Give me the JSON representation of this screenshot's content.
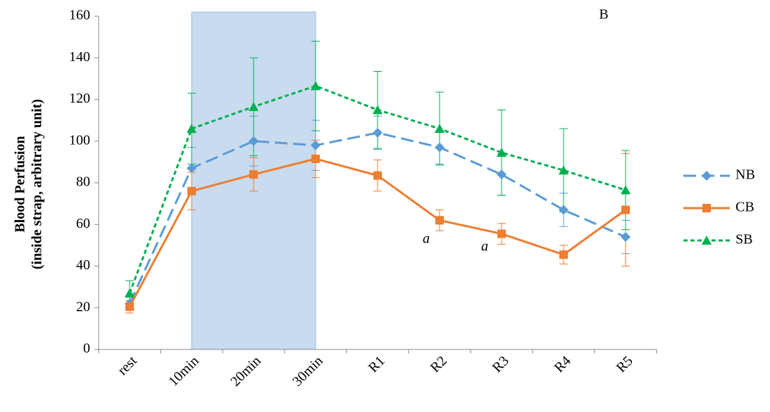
{
  "chart_data": {
    "type": "line",
    "panel_label": "B",
    "y_label": [
      "Blood Perfusion",
      "(inside strap, arbitrary unit)"
    ],
    "categories": [
      "rest",
      "10min",
      "20min",
      "30min",
      "R1",
      "R2",
      "R3",
      "R4",
      "R5"
    ],
    "shaded_span": [
      "10min",
      "30min"
    ],
    "series": [
      {
        "name": "NB",
        "color": "#5b9bd5",
        "marker": "diamond",
        "dash": "long",
        "values": [
          22,
          87,
          100,
          98,
          104,
          97,
          84,
          67,
          54
        ],
        "errors": [
          3,
          10,
          12,
          12,
          8,
          8,
          10,
          8,
          8
        ]
      },
      {
        "name": "CB",
        "color": "#ed7d31",
        "marker": "square",
        "dash": "solid",
        "values": [
          20.5,
          76,
          84,
          91.5,
          83.5,
          62,
          55.5,
          45.5,
          67
        ],
        "errors": [
          3,
          9,
          8,
          9,
          7.5,
          5,
          5,
          4.5,
          27
        ]
      },
      {
        "name": "SB",
        "color": "#00b050",
        "marker": "triangle",
        "dash": "short",
        "values": [
          27,
          106,
          116.5,
          126.5,
          115,
          106,
          94.5,
          86,
          76.5
        ],
        "errors": [
          6,
          17,
          23.5,
          21.5,
          18.5,
          17.5,
          20.5,
          20,
          19
        ]
      }
    ],
    "annotations": [
      "a",
      "a"
    ],
    "ylim": [
      0,
      160
    ],
    "yticks": [
      0,
      20,
      40,
      60,
      80,
      100,
      120,
      140,
      160
    ],
    "legend": "right"
  }
}
